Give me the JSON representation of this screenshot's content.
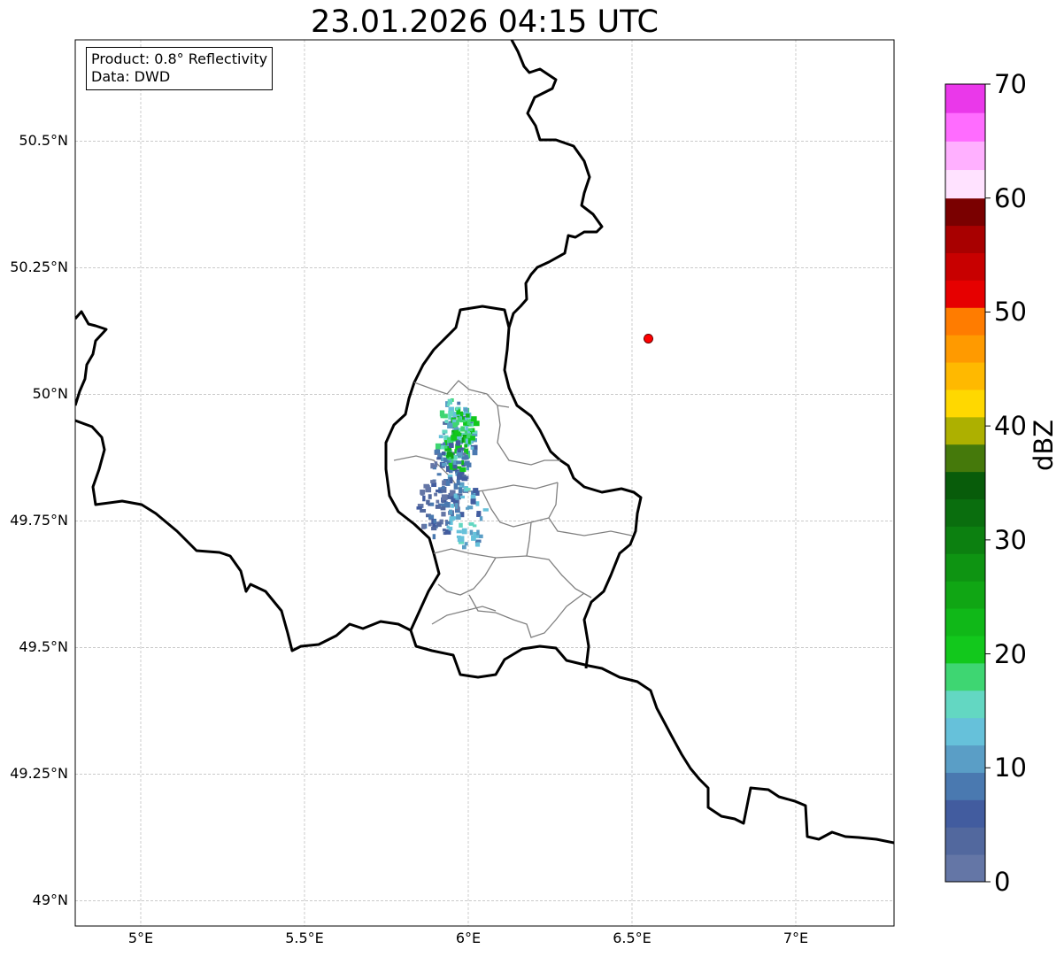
{
  "title": "23.01.2026 04:15 UTC",
  "info": {
    "product": "Product: 0.8° Reflectivity",
    "data": "Data: DWD"
  },
  "lat_ticks": [
    {
      "value": 50.5,
      "label": "50.5°N"
    },
    {
      "value": 50.25,
      "label": "50.25°N"
    },
    {
      "value": 50.0,
      "label": "50°N"
    },
    {
      "value": 49.75,
      "label": "49.75°N"
    },
    {
      "value": 49.5,
      "label": "49.5°N"
    },
    {
      "value": 49.25,
      "label": "49.25°N"
    },
    {
      "value": 49.0,
      "label": "49°N"
    }
  ],
  "lon_ticks": [
    {
      "value": 5.0,
      "label": "5°E"
    },
    {
      "value": 5.5,
      "label": "5.5°E"
    },
    {
      "value": 6.0,
      "label": "6°E"
    },
    {
      "value": 6.5,
      "label": "6.5°E"
    },
    {
      "value": 7.0,
      "label": "7°E"
    }
  ],
  "extent": {
    "lon_min": 4.8,
    "lon_max": 7.3,
    "lat_min": 48.95,
    "lat_max": 50.7
  },
  "colorbar": {
    "label": "dBZ",
    "tick_labels": [
      "0",
      "10",
      "20",
      "30",
      "40",
      "50",
      "60",
      "70"
    ],
    "colors": [
      "#6476a6",
      "#52689e",
      "#425c9f",
      "#4a79b0",
      "#5a9ec6",
      "#66c1da",
      "#63d7c2",
      "#3ed672",
      "#12c81c",
      "#10b818",
      "#10a614",
      "#0e9412",
      "#0c8010",
      "#0a6e0e",
      "#085c0a",
      "#45790b",
      "#adb000",
      "#ffd800",
      "#ffb900",
      "#ff9a00",
      "#ff7c00",
      "#e60000",
      "#c80000",
      "#a80000",
      "#7a0000",
      "#ffe2ff",
      "#ffb0ff",
      "#ff6cff",
      "#ea38ea"
    ]
  },
  "radar_site": {
    "lon": 6.55,
    "lat": 50.11,
    "color": "#ff0000"
  },
  "echoes": [
    {
      "lon": 5.96,
      "lat": 49.9,
      "dbz": 8
    },
    {
      "lon": 5.95,
      "lat": 49.93,
      "dbz": 14
    },
    {
      "lon": 5.96,
      "lat": 49.89,
      "dbz": 22
    },
    {
      "lon": 5.98,
      "lat": 49.94,
      "dbz": 18
    },
    {
      "lon": 5.94,
      "lat": 49.85,
      "dbz": 6
    },
    {
      "lon": 5.9,
      "lat": 49.78,
      "dbz": 5
    },
    {
      "lon": 5.99,
      "lat": 49.76,
      "dbz": 10
    }
  ],
  "map_lines": {
    "border_color": "#000000",
    "admin_color": "#808080"
  }
}
